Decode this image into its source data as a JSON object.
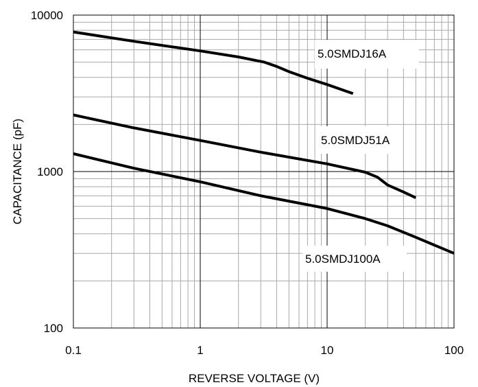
{
  "chart_data": {
    "type": "line",
    "xlabel": "REVERSE VOLTAGE (V)",
    "ylabel": "CAPACITANCE (pF)",
    "xscale": "log",
    "yscale": "log",
    "xlim": [
      0.1,
      100
    ],
    "ylim": [
      100,
      10000
    ],
    "grid": true,
    "x_tick_labels": [
      "0.1",
      "1",
      "10",
      "100"
    ],
    "y_tick_labels": [
      "100",
      "1000",
      "10000"
    ],
    "series": [
      {
        "name": "5.0SMDJ16A",
        "color": "#000000",
        "points": [
          [
            0.1,
            7800
          ],
          [
            0.3,
            6800
          ],
          [
            1,
            5900
          ],
          [
            2,
            5400
          ],
          [
            3.2,
            5000
          ],
          [
            4,
            4700
          ],
          [
            5,
            4350
          ],
          [
            7,
            3950
          ],
          [
            10,
            3600
          ],
          [
            16,
            3150
          ]
        ]
      },
      {
        "name": "5.0SMDJ51A",
        "color": "#000000",
        "points": [
          [
            0.1,
            2300
          ],
          [
            0.3,
            1900
          ],
          [
            1,
            1580
          ],
          [
            3,
            1330
          ],
          [
            10,
            1120
          ],
          [
            20,
            990
          ],
          [
            25,
            920
          ],
          [
            30,
            820
          ],
          [
            40,
            740
          ],
          [
            50,
            680
          ]
        ]
      },
      {
        "name": "5.0SMDJ100A",
        "color": "#000000",
        "points": [
          [
            0.1,
            1300
          ],
          [
            0.3,
            1050
          ],
          [
            1,
            860
          ],
          [
            3,
            700
          ],
          [
            10,
            580
          ],
          [
            20,
            500
          ],
          [
            30,
            450
          ],
          [
            50,
            380
          ],
          [
            100,
            300
          ]
        ]
      }
    ]
  }
}
